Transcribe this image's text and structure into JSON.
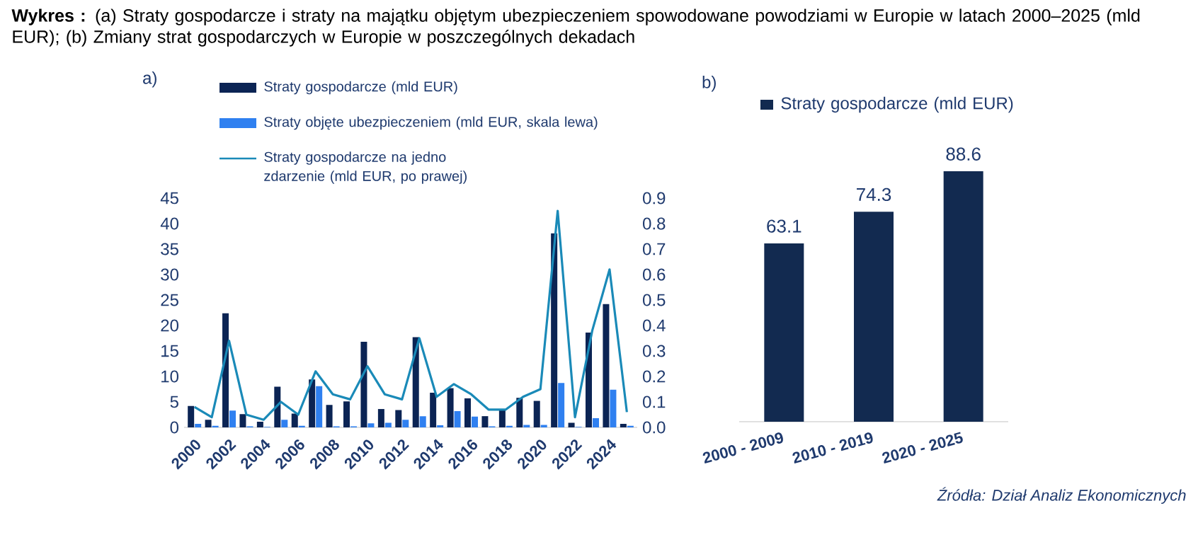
{
  "chart_data": [
    {
      "type": "bar",
      "title": "a)",
      "annotations": [
        "**Wykres :** (a) Straty gospodarcze i straty na majątku objętym ubezpieczeniem spowodowane powodziami w Europie w latach 2000–2025 (mld EUR); (b) Zmiany strat gospodarczych w Europie w poszczególnych dekadach"
      ],
      "categories": [
        "2000",
        null,
        "2002",
        null,
        "2004",
        null,
        "2006",
        null,
        "2008",
        null,
        "2010",
        null,
        "2012",
        null,
        "2014",
        null,
        "2016",
        null,
        "2018",
        null,
        "2020",
        null,
        "2022",
        null,
        "2024",
        null
      ],
      "series": [
        {
          "name": "Straty gospodarcze (mld EUR)",
          "color": "#0b2454",
          "values": [
            4.2,
            1.5,
            22.4,
            2.6,
            1.1,
            8.0,
            2.7,
            9.4,
            4.4,
            5.1,
            16.8,
            3.6,
            3.4,
            17.7,
            6.8,
            7.7,
            5.7,
            2.2,
            3.5,
            5.8,
            5.2,
            38.1,
            0.9,
            18.6,
            24.2,
            0.7
          ]
        },
        {
          "name": "Straty objęte ubezpieczeniem (mld EUR, skala lewa)",
          "color": "#2f80f0",
          "values": [
            0.7,
            0.3,
            3.3,
            0.2,
            0.1,
            1.5,
            0.3,
            8.1,
            0.2,
            0.2,
            0.8,
            0.9,
            1.5,
            2.2,
            0.4,
            3.2,
            2.1,
            0.2,
            0.3,
            0.5,
            0.5,
            8.7,
            0.1,
            1.8,
            7.4,
            0.3
          ]
        },
        {
          "name": "Straty gospodarcze na jedno zdarzenie (mld EUR, po prawej)",
          "type": "line",
          "axis": "y2",
          "color": "#1a8ab8",
          "values": [
            0.08,
            0.04,
            0.34,
            0.05,
            0.03,
            0.1,
            0.05,
            0.22,
            0.13,
            0.11,
            0.24,
            0.13,
            0.11,
            0.35,
            0.12,
            0.17,
            0.13,
            0.07,
            0.07,
            0.12,
            0.15,
            0.85,
            0.04,
            0.38,
            0.62,
            0.06
          ]
        }
      ],
      "ylim": [
        0,
        45
      ],
      "yticks": [
        0,
        5,
        10,
        15,
        20,
        25,
        30,
        35,
        40,
        45
      ],
      "y2lim": [
        0,
        0.9
      ],
      "y2ticks": [
        {
          "value": 0,
          "label": "0.0"
        },
        {
          "value": 0.1,
          "label": "0.1"
        },
        {
          "value": 0.2,
          "label": "0.2"
        },
        {
          "value": 0.3,
          "label": "0.3"
        },
        {
          "value": 0.4,
          "label": "0.4"
        },
        {
          "value": 0.5,
          "label": "0.5"
        },
        {
          "value": 0.6,
          "label": "0.6"
        },
        {
          "value": 0.7,
          "label": "0.7"
        },
        {
          "value": 0.8,
          "label": "0.8"
        },
        {
          "value": 0.9,
          "label": "0.9"
        }
      ],
      "legend": "top",
      "grid": false
    },
    {
      "type": "bar",
      "title": "b)",
      "annotations": [
        "Źródła: Dział Analiz Ekonomicznych"
      ],
      "categories": [
        "2000 - 2009",
        "2010 - 2019",
        "2020 - 2025"
      ],
      "series": [
        {
          "name": "Straty gospodarcze (mld EUR)",
          "color": "#122a50",
          "values": [
            63.1,
            74.3,
            88.6
          ]
        }
      ],
      "data_labels": true,
      "legend": "top",
      "grid": false
    }
  ]
}
